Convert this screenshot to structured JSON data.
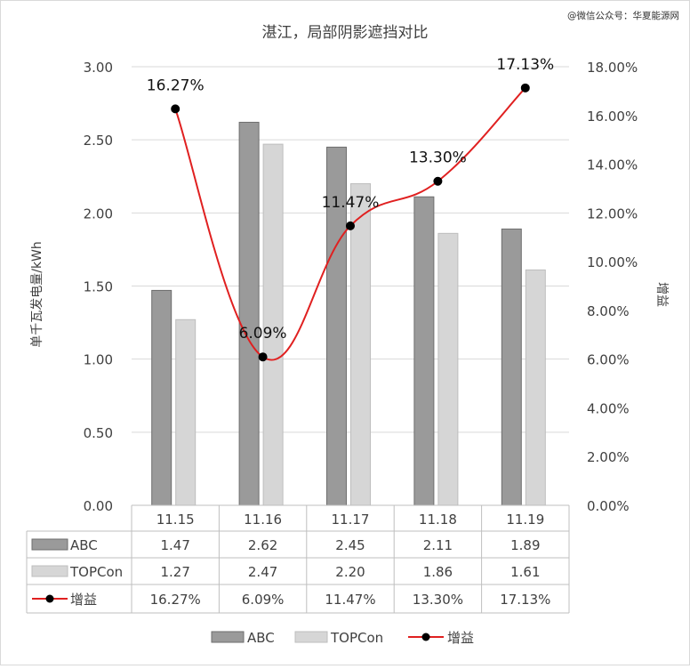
{
  "chart_data": {
    "type": "bar",
    "title": "湛江，局部阴影遮挡对比",
    "watermark": "@微信公众号：华夏能源网",
    "ylabel": "单千瓦发电量/kWh",
    "y2label": "增益",
    "categories": [
      "11.15",
      "11.16",
      "11.17",
      "11.18",
      "11.19"
    ],
    "ylim": [
      0,
      3.0
    ],
    "y_ticks": [
      "0.00",
      "0.50",
      "1.00",
      "1.50",
      "2.00",
      "2.50",
      "3.00"
    ],
    "y2lim": [
      0,
      0.18
    ],
    "y2_ticks": [
      "0.00%",
      "2.00%",
      "4.00%",
      "6.00%",
      "8.00%",
      "10.00%",
      "12.00%",
      "14.00%",
      "16.00%",
      "18.00%"
    ],
    "series": [
      {
        "name": "ABC",
        "type": "bar",
        "color": "#9a9a9a",
        "values": [
          1.47,
          2.62,
          2.45,
          2.11,
          1.89
        ],
        "labels": [
          "1.47",
          "2.62",
          "2.45",
          "2.11",
          "1.89"
        ]
      },
      {
        "name": "TOPCon",
        "type": "bar",
        "color": "#d6d6d6",
        "values": [
          1.27,
          2.47,
          2.2,
          1.86,
          1.61
        ],
        "labels": [
          "1.27",
          "2.47",
          "2.20",
          "1.86",
          "1.61"
        ]
      },
      {
        "name": "增益",
        "type": "line",
        "axis": "right",
        "color": "#e02020",
        "values": [
          0.1627,
          0.0609,
          0.1147,
          0.133,
          0.1713
        ],
        "labels": [
          "16.27%",
          "6.09%",
          "11.47%",
          "13.30%",
          "17.13%"
        ]
      }
    ],
    "grid": true,
    "legend": "bottom",
    "data_table": true
  }
}
